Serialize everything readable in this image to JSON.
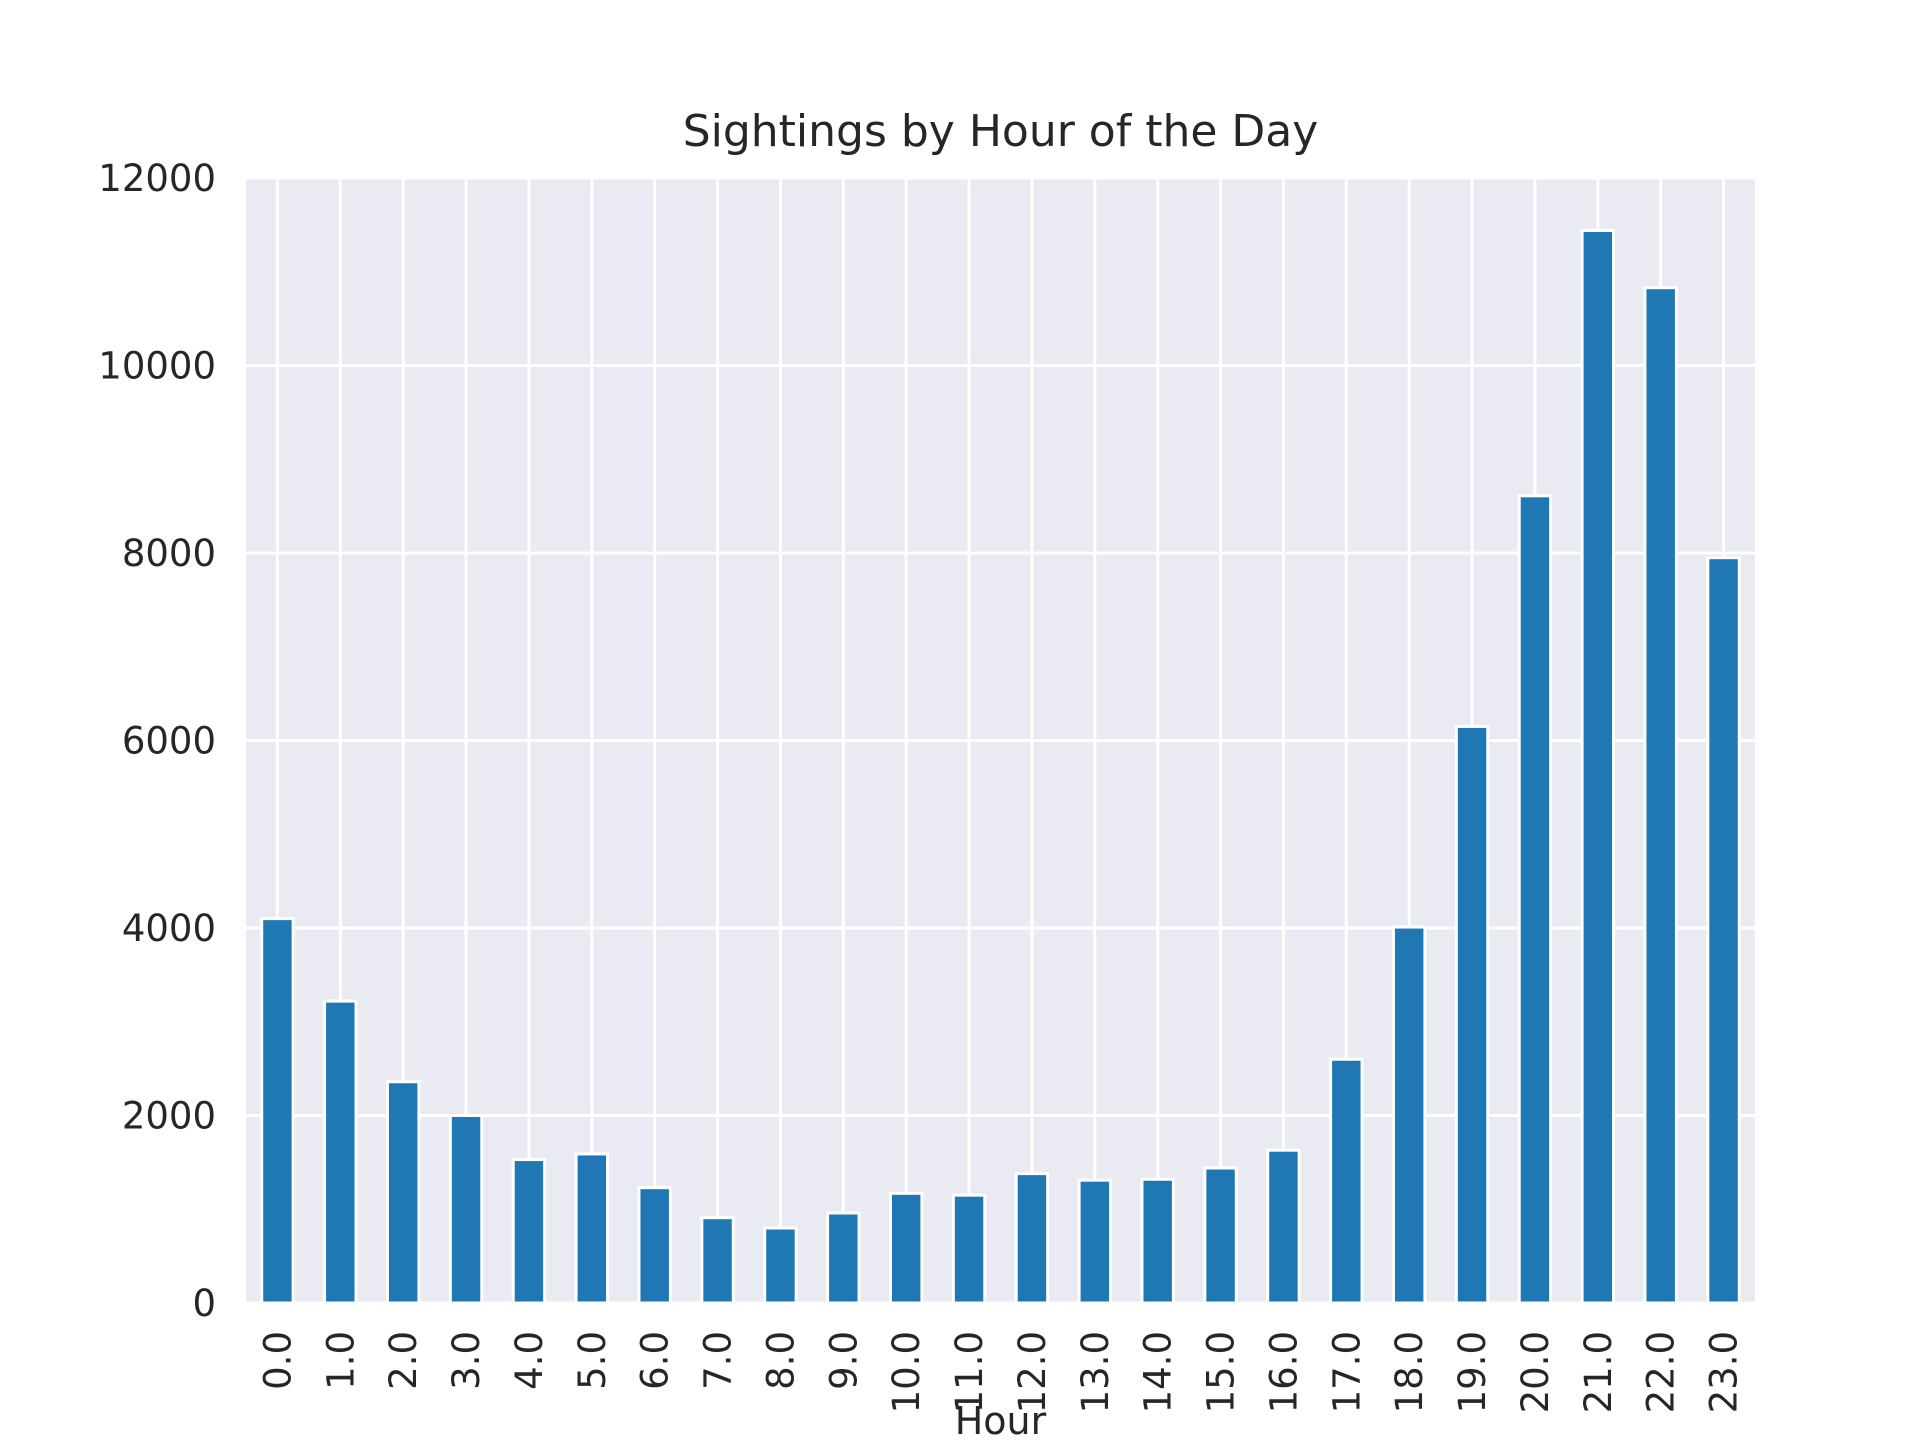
{
  "chart_data": {
    "type": "bar",
    "title": "Sightings by Hour of the Day",
    "xlabel": "Hour",
    "ylabel": "",
    "categories": [
      "0.0",
      "1.0",
      "2.0",
      "3.0",
      "4.0",
      "5.0",
      "6.0",
      "7.0",
      "8.0",
      "9.0",
      "10.0",
      "11.0",
      "12.0",
      "13.0",
      "14.0",
      "15.0",
      "16.0",
      "17.0",
      "18.0",
      "19.0",
      "20.0",
      "21.0",
      "22.0",
      "23.0"
    ],
    "values": [
      4100,
      3220,
      2360,
      2000,
      1530,
      1590,
      1230,
      910,
      800,
      960,
      1170,
      1150,
      1380,
      1310,
      1320,
      1440,
      1630,
      2600,
      4010,
      6150,
      8610,
      11440,
      10830,
      7950
    ],
    "ylim": [
      0,
      12000
    ],
    "yticks": [
      0,
      2000,
      4000,
      6000,
      8000,
      10000,
      12000
    ],
    "grid": true,
    "legend": "none",
    "colors": {
      "bar": "#1f77b4",
      "bar_edge": "#ffffff",
      "plot_background": "#eaeaf2",
      "grid": "#ffffff",
      "text": "#262626"
    }
  }
}
